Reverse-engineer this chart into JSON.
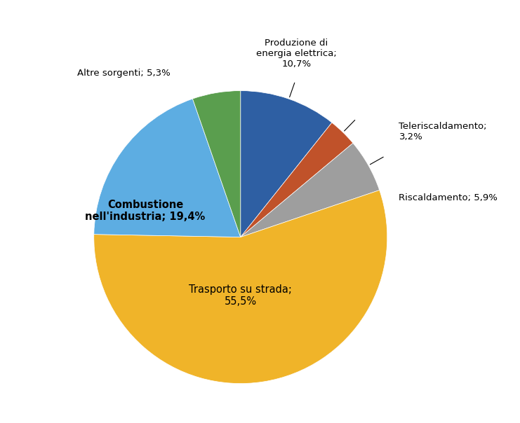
{
  "slices": [
    {
      "label": "Produzione di\nenergia elettrica;\n10,7%",
      "value": 10.7,
      "color": "#2E5FA3"
    },
    {
      "label": "Teleriscaldamento;\n3,2%",
      "value": 3.2,
      "color": "#C0522A"
    },
    {
      "label": "Riscaldamento; 5,9%",
      "value": 5.9,
      "color": "#9E9E9E"
    },
    {
      "label": "Trasporto su strada;\n55,5%",
      "value": 55.5,
      "color": "#F0B429"
    },
    {
      "label": "Combustione\nnell'industria; 19,4%",
      "value": 19.4,
      "color": "#5DADE2"
    },
    {
      "label": "Altre sorgenti; 5,3%",
      "value": 5.3,
      "color": "#5A9E4E"
    }
  ],
  "figsize": [
    7.41,
    6.04
  ],
  "dpi": 100,
  "bg_color": "#FFFFFF"
}
